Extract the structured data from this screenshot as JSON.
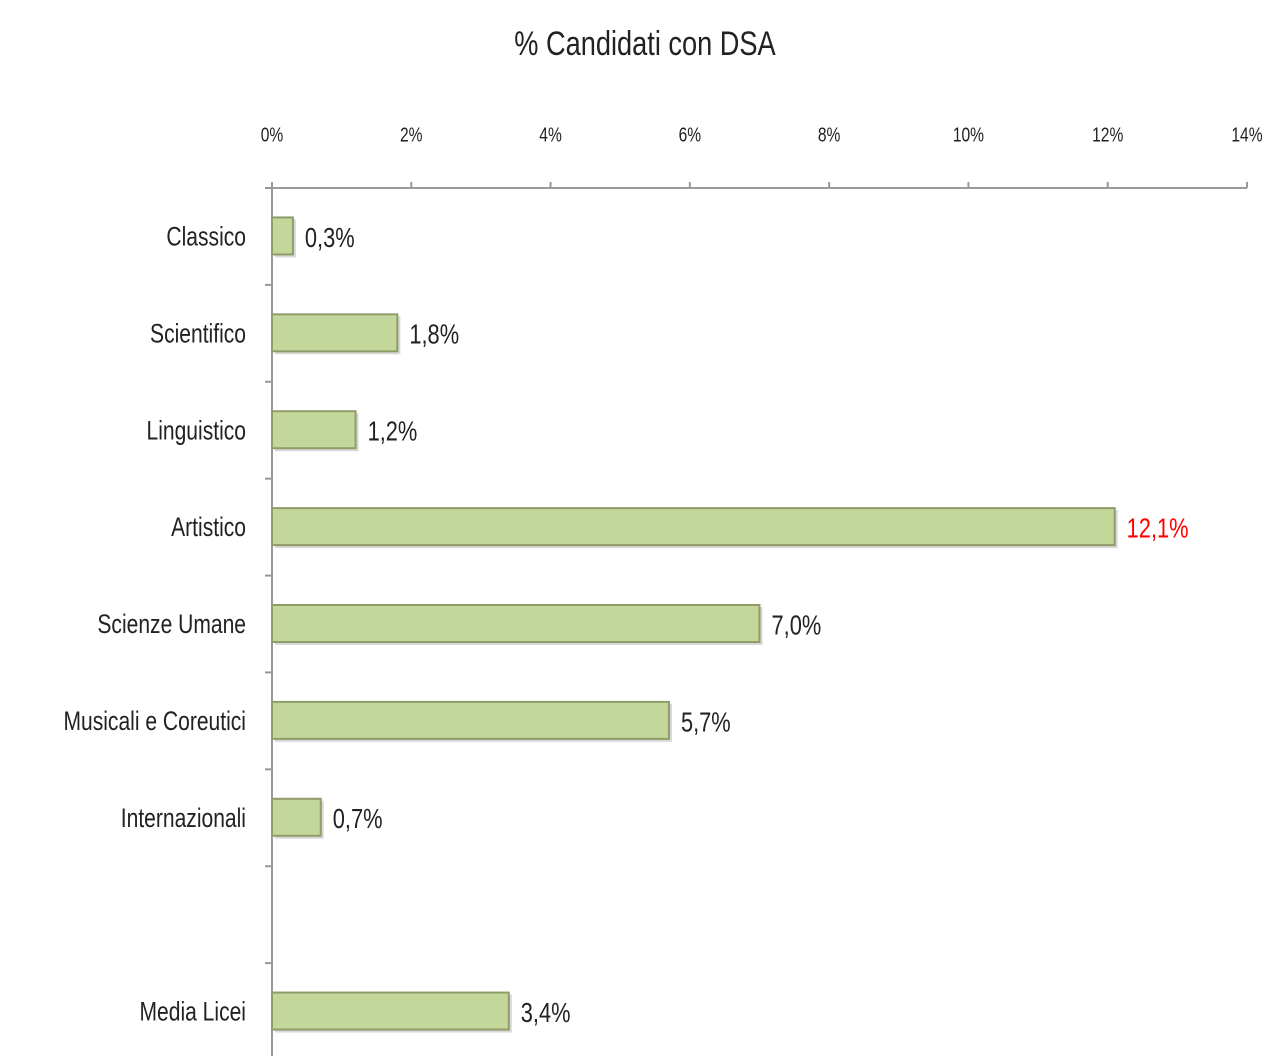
{
  "chart_data": {
    "type": "bar",
    "orientation": "horizontal",
    "title": "% Candidati con DSA",
    "categories": [
      "Classico",
      "Scientifico",
      "Linguistico",
      "Artistico",
      "Scienze Umane",
      "Musicali e Coreutici",
      "Internazionali",
      null,
      "Media Licei"
    ],
    "values": [
      0.3,
      1.8,
      1.2,
      12.1,
      7.0,
      5.7,
      0.7,
      null,
      3.4
    ],
    "value_labels": [
      "0,3%",
      "1,8%",
      "1,2%",
      "12,1%",
      "7,0%",
      "5,7%",
      "0,7%",
      null,
      "3,4%"
    ],
    "value_label_colors": [
      "#222222",
      "#222222",
      "#222222",
      "#ff0000",
      "#222222",
      "#222222",
      "#222222",
      null,
      "#222222"
    ],
    "color": "#c4d79b",
    "edge_color": "#8f9c6a",
    "xlim": [
      0,
      14
    ],
    "xticks": [
      {
        "value": 0,
        "label": "0%"
      },
      {
        "value": 2,
        "label": "2%"
      },
      {
        "value": 4,
        "label": "4%"
      },
      {
        "value": 6,
        "label": "6%"
      },
      {
        "value": 8,
        "label": "8%"
      },
      {
        "value": 10,
        "label": "10%"
      },
      {
        "value": 12,
        "label": "12%"
      },
      {
        "value": 14,
        "label": "14%"
      }
    ],
    "axis_position": "top",
    "grid": false
  }
}
